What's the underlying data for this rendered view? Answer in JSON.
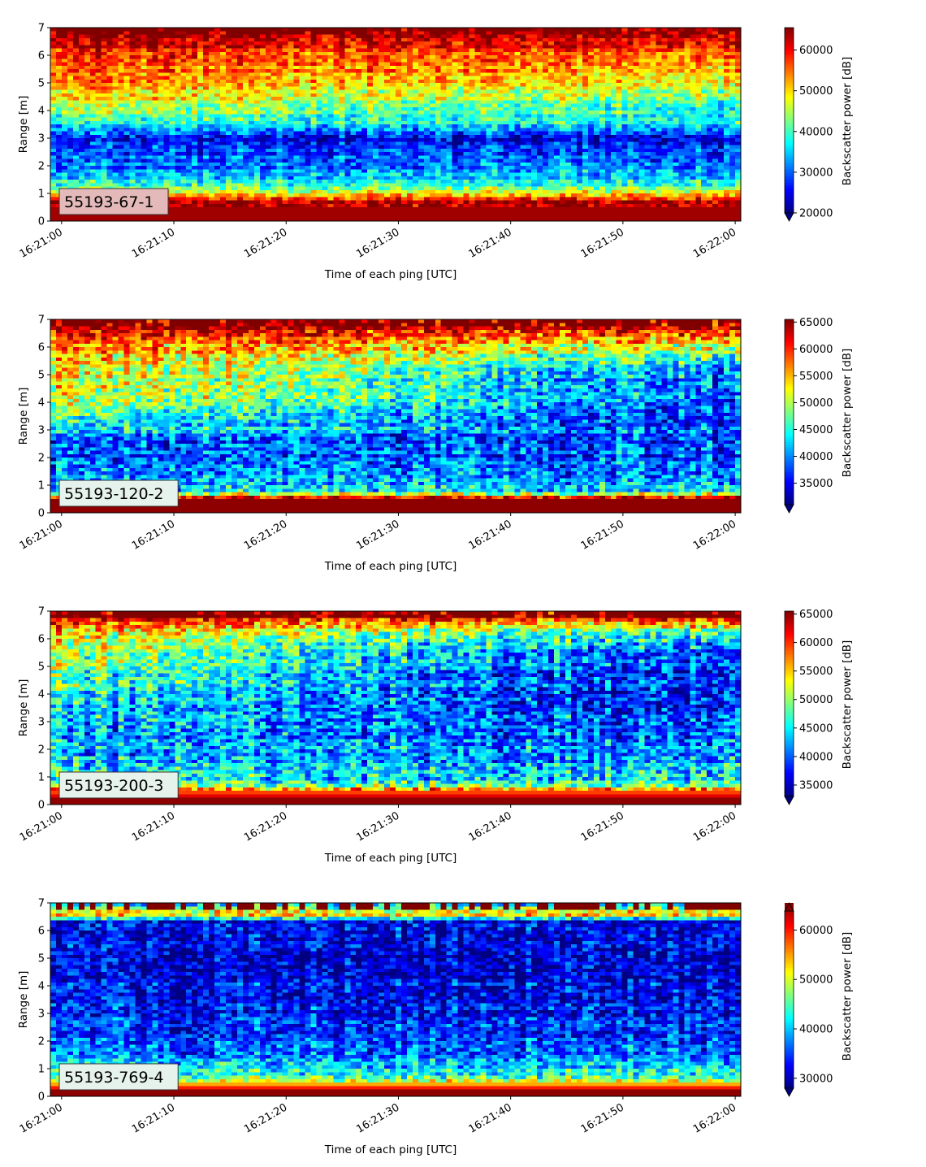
{
  "chart_data": [
    {
      "type": "heatmap",
      "label": "55193-67-1",
      "xlabel": "Time of each ping [UTC]",
      "ylabel": "Range [m]",
      "colorbar_label": "Backscatter power [dB]",
      "x_ticks": [
        "16:21:00",
        "16:21:10",
        "16:21:20",
        "16:21:30",
        "16:21:40",
        "16:21:50",
        "16:22:00"
      ],
      "y_ticks": [
        "0",
        "1",
        "2",
        "3",
        "4",
        "5",
        "6",
        "7"
      ],
      "xlim": [
        "16:20:59",
        "16:22:00.5"
      ],
      "ylim": [
        0,
        7
      ],
      "colorbar_ticks": [
        "20000",
        "30000",
        "40000",
        "50000",
        "60000"
      ],
      "colorbar_range": [
        20000,
        65500
      ],
      "colorbar_extend": "min",
      "colormap": "jet",
      "profile_range_m": [
        0.2,
        0.7,
        1.2,
        1.5,
        2.0,
        3.0,
        3.5,
        4.0,
        5.0,
        6.0,
        6.8
      ],
      "profile_start": [
        64000,
        64000,
        42000,
        36000,
        30000,
        27000,
        37000,
        45000,
        54000,
        58000,
        64000
      ],
      "profile_end": [
        64000,
        64000,
        42000,
        36000,
        32000,
        25000,
        38000,
        38000,
        48000,
        56000,
        64000
      ]
    },
    {
      "type": "heatmap",
      "label": "55193-120-2",
      "xlabel": "Time of each ping [UTC]",
      "ylabel": "Range [m]",
      "colorbar_label": "Backscatter power [dB]",
      "x_ticks": [
        "16:21:00",
        "16:21:10",
        "16:21:20",
        "16:21:30",
        "16:21:40",
        "16:21:50",
        "16:22:00"
      ],
      "y_ticks": [
        "0",
        "1",
        "2",
        "3",
        "4",
        "5",
        "6",
        "7"
      ],
      "xlim": [
        "16:20:59",
        "16:22:00.5"
      ],
      "ylim": [
        0,
        7
      ],
      "colorbar_ticks": [
        "35000",
        "40000",
        "45000",
        "50000",
        "55000",
        "60000",
        "65000"
      ],
      "colorbar_range": [
        31000,
        65500
      ],
      "colorbar_extend": "min",
      "colormap": "jet",
      "profile_range_m": [
        0.2,
        0.5,
        0.8,
        1.5,
        2.5,
        3.2,
        4.0,
        5.0,
        6.0,
        6.8
      ],
      "profile_start": [
        65000,
        65000,
        43000,
        40000,
        37000,
        45000,
        51000,
        53000,
        57000,
        64000
      ],
      "profile_end": [
        65000,
        65000,
        43000,
        40000,
        37000,
        38000,
        37000,
        39000,
        50000,
        64000
      ]
    },
    {
      "type": "heatmap",
      "label": "55193-200-3",
      "xlabel": "Time of each ping [UTC]",
      "ylabel": "Range [m]",
      "colorbar_label": "Backscatter power [dB]",
      "x_ticks": [
        "16:21:00",
        "16:21:10",
        "16:21:20",
        "16:21:30",
        "16:21:40",
        "16:21:50",
        "16:22:00"
      ],
      "y_ticks": [
        "0",
        "1",
        "2",
        "3",
        "4",
        "5",
        "6",
        "7"
      ],
      "xlim": [
        "16:20:59",
        "16:22:00.5"
      ],
      "ylim": [
        0,
        7
      ],
      "colorbar_ticks": [
        "35000",
        "40000",
        "45000",
        "50000",
        "55000",
        "60000",
        "65000"
      ],
      "colorbar_range": [
        33000,
        65500
      ],
      "colorbar_extend": "min",
      "colormap": "jet",
      "profile_range_m": [
        0.2,
        0.5,
        0.8,
        1.5,
        2.5,
        3.5,
        4.5,
        5.5,
        6.3,
        6.8
      ],
      "profile_start": [
        65000,
        58000,
        46000,
        43000,
        42000,
        44000,
        48000,
        50000,
        54000,
        64000
      ],
      "profile_end": [
        65000,
        58000,
        46000,
        42000,
        40000,
        38000,
        37000,
        38000,
        47000,
        64000
      ]
    },
    {
      "type": "heatmap",
      "label": "55193-769-4",
      "xlabel": "Time of each ping [UTC]",
      "ylabel": "Range [m]",
      "colorbar_label": "Backscatter power [dB]",
      "x_ticks": [
        "16:21:00",
        "16:21:10",
        "16:21:20",
        "16:21:30",
        "16:21:40",
        "16:21:50",
        "16:22:00"
      ],
      "y_ticks": [
        "0",
        "1",
        "2",
        "3",
        "4",
        "5",
        "6",
        "7"
      ],
      "xlim": [
        "16:20:59",
        "16:22:00.5"
      ],
      "ylim": [
        0,
        7
      ],
      "colorbar_ticks": [
        "30000",
        "40000",
        "50000",
        "60000"
      ],
      "colorbar_range": [
        28000,
        65500
      ],
      "colorbar_extend": "both",
      "colormap": "jet",
      "profile_range_m": [
        0.2,
        0.4,
        0.7,
        1.2,
        2.0,
        3.0,
        5.0,
        6.3,
        6.6,
        6.9
      ],
      "profile_start": [
        65000,
        56000,
        45000,
        40000,
        35000,
        33000,
        31000,
        32000,
        55000,
        42000
      ],
      "profile_end": [
        65000,
        56000,
        44000,
        39000,
        35000,
        33000,
        31000,
        32000,
        55000,
        42000
      ]
    }
  ]
}
